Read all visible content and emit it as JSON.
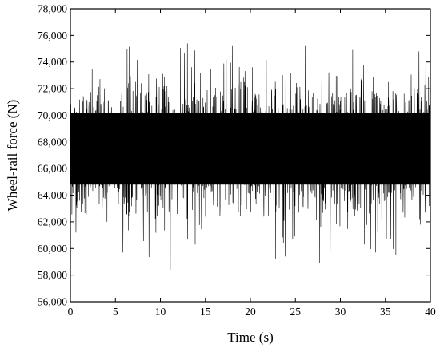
{
  "chart_data": {
    "type": "line",
    "xlabel": "Time (s)",
    "ylabel": "Wheel-rail force (N)",
    "xlim": [
      0,
      40
    ],
    "ylim": [
      56000,
      78000
    ],
    "x_ticks": [
      {
        "value": 0,
        "label": "0"
      },
      {
        "value": 5,
        "label": "5"
      },
      {
        "value": 10,
        "label": "10"
      },
      {
        "value": 15,
        "label": "15"
      },
      {
        "value": 20,
        "label": "20"
      },
      {
        "value": 25,
        "label": "25"
      },
      {
        "value": 30,
        "label": "30"
      },
      {
        "value": 35,
        "label": "35"
      },
      {
        "value": 40,
        "label": "40"
      }
    ],
    "y_ticks": [
      {
        "value": 56000,
        "label": "56,000"
      },
      {
        "value": 58000,
        "label": "58,000"
      },
      {
        "value": 60000,
        "label": "60,000"
      },
      {
        "value": 62000,
        "label": "62,000"
      },
      {
        "value": 64000,
        "label": "64,000"
      },
      {
        "value": 66000,
        "label": "66,000"
      },
      {
        "value": 68000,
        "label": "68,000"
      },
      {
        "value": 70000,
        "label": "70,000"
      },
      {
        "value": 72000,
        "label": "72,000"
      },
      {
        "value": 74000,
        "label": "74,000"
      },
      {
        "value": 76000,
        "label": "76,000"
      },
      {
        "value": 78000,
        "label": "78,000"
      }
    ],
    "grid": false,
    "legend": "none",
    "series": [
      {
        "color": "#000000",
        "signal": {
          "description_of_shape": "dense stationary random oscillation",
          "mean": 67500,
          "typical_range": [
            64500,
            70500
          ],
          "max": 75800,
          "min": 58400,
          "peaks": [
            {
              "x": 11.1,
              "y": 75800
            },
            {
              "x": 39.5,
              "y": 75500
            },
            {
              "x": 13.0,
              "y": 75400
            },
            {
              "x": 18.0,
              "y": 75200
            },
            {
              "x": 26.1,
              "y": 75200
            },
            {
              "x": 6.3,
              "y": 75000
            },
            {
              "x": 40.0,
              "y": 75000
            }
          ],
          "troughs": [
            {
              "x": 11.1,
              "y": 58400
            },
            {
              "x": 27.7,
              "y": 58900
            },
            {
              "x": 22.8,
              "y": 59200
            },
            {
              "x": 0.4,
              "y": 59500
            },
            {
              "x": 33.9,
              "y": 59700
            },
            {
              "x": 8.4,
              "y": 59800
            }
          ]
        }
      }
    ]
  }
}
